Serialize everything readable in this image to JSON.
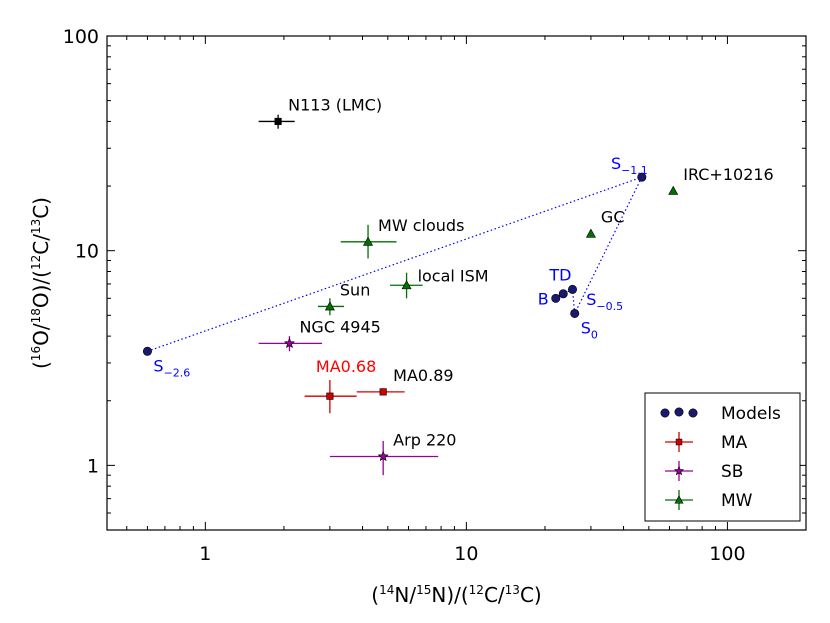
{
  "chart_data": {
    "type": "scatter",
    "xscale": "log",
    "yscale": "log",
    "xlim": [
      0.42,
      200
    ],
    "ylim": [
      0.5,
      100
    ],
    "xlabel": {
      "pre": "(",
      "sup1": "14",
      "mid1": "N/",
      "sup2": "15",
      "mid2": "N)/(",
      "sup3": "12",
      "mid3": "C/",
      "sup4": "13",
      "post": "C)"
    },
    "ylabel": {
      "pre": "(",
      "sup1": "16",
      "mid1": "O/",
      "sup2": "18",
      "mid2": "O)/(",
      "sup3": "12",
      "mid3": "C/",
      "sup4": "13",
      "post": "C)"
    },
    "xticks": [
      {
        "value": 1,
        "label": "1"
      },
      {
        "value": 10,
        "label": "10"
      },
      {
        "value": 100,
        "label": "100"
      }
    ],
    "yticks": [
      {
        "value": 1,
        "label": "1"
      },
      {
        "value": 10,
        "label": "10"
      },
      {
        "value": 100,
        "label": "100"
      }
    ],
    "colors": {
      "models": "#191970",
      "model_text": "#0000ff",
      "MA": "#d00000",
      "MA_label": "#ff0000",
      "SB": "#990099",
      "MW": "#007000",
      "black": "#000000"
    },
    "legend": {
      "position": "lower-right",
      "entries": [
        {
          "label": "Models",
          "group": "models"
        },
        {
          "label": "MA",
          "group": "MA"
        },
        {
          "label": "SB",
          "group": "SB"
        },
        {
          "label": "MW",
          "group": "MW"
        }
      ]
    },
    "series": [
      {
        "name": "Models",
        "marker": "circle",
        "points": [
          {
            "label": "S",
            "sub": "−2.6",
            "x": 0.6,
            "y": 3.4,
            "lanchor": "below-right"
          },
          {
            "label": "S",
            "sub": "−1.1",
            "x": 47,
            "y": 22,
            "lanchor": "above-left"
          },
          {
            "label": "TD",
            "sub": "",
            "x": 25.5,
            "y": 6.6,
            "lanchor": "left-high"
          },
          {
            "label": "B",
            "sub": "",
            "x": 22,
            "y": 6,
            "lanchor": "left"
          },
          {
            "label": "S",
            "sub": "−0.5",
            "x": 23.5,
            "y": 6.3,
            "lanchor": "right-low"
          },
          {
            "label": "S",
            "sub": "0",
            "x": 26,
            "y": 5.1,
            "lanchor": "below-right"
          }
        ],
        "path": [
          [
            0.6,
            3.4
          ],
          [
            47,
            22
          ],
          [
            26,
            5.1
          ],
          [
            25.5,
            6.6
          ],
          [
            23.5,
            6.3
          ],
          [
            22,
            6
          ]
        ]
      },
      {
        "name": "MA",
        "marker": "square",
        "points": [
          {
            "label": "MA0.68",
            "x": 3.0,
            "y": 2.1,
            "xerr": [
              2.4,
              3.8
            ],
            "yerr": [
              1.75,
              2.5
            ],
            "label_color": "MA_label",
            "lanchor": "above-wide"
          },
          {
            "label": "MA0.89",
            "x": 4.8,
            "y": 2.2,
            "xerr": [
              3.8,
              5.8
            ],
            "yerr": [
              2.15,
              2.25
            ],
            "label_color": "black",
            "lanchor": "above-right"
          }
        ]
      },
      {
        "name": "SB",
        "marker": "star",
        "points": [
          {
            "label": "NGC 4945",
            "x": 2.1,
            "y": 3.7,
            "xerr": [
              1.6,
              2.8
            ],
            "yerr": [
              3.4,
              4.0
            ],
            "lanchor": "above-right"
          },
          {
            "label": "Arp 220",
            "x": 4.8,
            "y": 1.1,
            "xerr": [
              3.0,
              7.8
            ],
            "yerr": [
              0.9,
              1.3
            ],
            "lanchor": "above-right"
          }
        ]
      },
      {
        "name": "MW",
        "marker": "triangle",
        "points": [
          {
            "label": "MW clouds",
            "x": 4.2,
            "y": 11,
            "xerr": [
              3.3,
              5.4
            ],
            "yerr": [
              9.2,
              13.2
            ],
            "lanchor": "above-right"
          },
          {
            "label": "local ISM",
            "x": 5.9,
            "y": 6.9,
            "xerr": [
              5.1,
              6.8
            ],
            "yerr": [
              6.0,
              7.9
            ],
            "lanchor": "right"
          },
          {
            "label": "Sun",
            "x": 3.0,
            "y": 5.5,
            "xerr": [
              2.7,
              3.4
            ],
            "yerr": [
              5.0,
              6.0
            ],
            "lanchor": "above-right"
          },
          {
            "label": "GC",
            "x": 30,
            "y": 12,
            "xerr": [
              30,
              30
            ],
            "yerr": [
              12,
              12
            ],
            "lanchor": "above-right"
          },
          {
            "label": "IRC+10216",
            "x": 62,
            "y": 19,
            "xerr": [
              62,
              62
            ],
            "yerr": [
              19,
              19
            ],
            "lanchor": "above-right"
          }
        ]
      },
      {
        "name": "Other",
        "marker": "square",
        "color_key": "black",
        "points": [
          {
            "label": "N113 (LMC)",
            "x": 1.9,
            "y": 40,
            "xerr": [
              1.6,
              2.2
            ],
            "yerr": [
              37,
              43
            ],
            "lanchor": "above-right"
          }
        ]
      }
    ]
  }
}
